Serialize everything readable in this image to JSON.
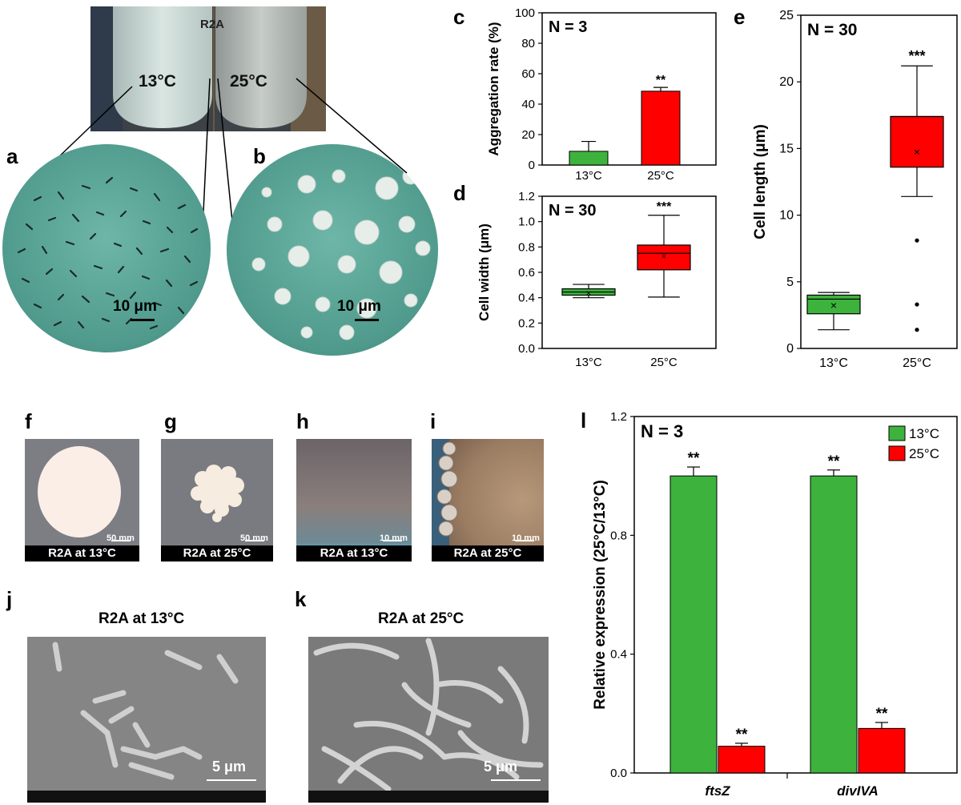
{
  "panel_labels": {
    "a": "a",
    "b": "b",
    "c": "c",
    "d": "d",
    "e": "e",
    "f": "f",
    "g": "g",
    "h": "h",
    "i": "i",
    "j": "j",
    "k": "k",
    "l": "l"
  },
  "tubes": {
    "medium": "R2A",
    "left_temp": "13°C",
    "right_temp": "25°C"
  },
  "micro": {
    "scale_a": "10 μm",
    "scale_b": "10 μm"
  },
  "plates": {
    "f": {
      "caption": "R2A at 13°C",
      "scale": "50 mm"
    },
    "g": {
      "caption": "R2A at 25°C",
      "scale": "50 mm"
    },
    "h": {
      "caption": "R2A at 13°C",
      "scale": "10 mm"
    },
    "i": {
      "caption": "R2A at 25°C",
      "scale": "10 mm"
    }
  },
  "sem": {
    "j": {
      "title": "R2A at 13°C",
      "scale": "5 μm"
    },
    "k": {
      "title": "R2A at 25°C",
      "scale": "5 μm"
    }
  },
  "colors": {
    "green": "#3db33d",
    "red": "#ff0000",
    "background": "#ffffff",
    "plate_bg": "#7a7a80"
  },
  "chart_data": [
    {
      "id": "c",
      "type": "bar",
      "annotation": "N = 3",
      "ylabel": "Aggregation rate (%)",
      "categories": [
        "13°C",
        "25°C"
      ],
      "values": [
        9,
        48.5
      ],
      "errors": [
        6.5,
        2.5
      ],
      "significance": [
        "",
        "**"
      ],
      "ylim": [
        0,
        100
      ],
      "yticks": [
        0,
        20,
        40,
        60,
        80,
        100
      ],
      "colors": [
        "#3db33d",
        "#ff0000"
      ]
    },
    {
      "id": "d",
      "type": "box",
      "annotation": "N = 30",
      "ylabel": "Cell width (μm)",
      "categories": [
        "13°C",
        "25°C"
      ],
      "boxes": [
        {
          "min": 0.4,
          "q1": 0.42,
          "median": 0.445,
          "q3": 0.47,
          "max": 0.505,
          "mean": 0.44,
          "outliers": []
        },
        {
          "min": 0.405,
          "q1": 0.62,
          "median": 0.75,
          "q3": 0.815,
          "max": 1.05,
          "mean": 0.73,
          "outliers": []
        }
      ],
      "significance": [
        "",
        "***"
      ],
      "ylim": [
        0,
        1.2
      ],
      "yticks": [
        0.0,
        0.2,
        0.4,
        0.6,
        0.8,
        1.0,
        1.2
      ],
      "colors": [
        "#3db33d",
        "#ff0000"
      ]
    },
    {
      "id": "e",
      "type": "box",
      "annotation": "N = 30",
      "ylabel": "Cell length (μm)",
      "categories": [
        "13°C",
        "25°C"
      ],
      "boxes": [
        {
          "min": 1.4,
          "q1": 2.6,
          "median": 3.7,
          "q3": 4.0,
          "max": 4.2,
          "mean": 3.2,
          "outliers": []
        },
        {
          "min": 11.4,
          "q1": 13.6,
          "median": 17.4,
          "q3": 17.4,
          "max": 21.2,
          "mean": 14.7,
          "outliers": [
            8.1,
            3.3,
            1.4
          ]
        }
      ],
      "significance": [
        "",
        "***"
      ],
      "ylim": [
        0,
        25
      ],
      "yticks": [
        0,
        5,
        10,
        15,
        20,
        25
      ],
      "colors": [
        "#3db33d",
        "#ff0000"
      ]
    },
    {
      "id": "l",
      "type": "bar",
      "annotation": "N = 3",
      "ylabel": "Relative expression (25°C/13°C)",
      "categories": [
        "ftsZ",
        "divIVA"
      ],
      "series": [
        {
          "name": "13°C",
          "values": [
            1.0,
            1.0
          ],
          "errors": [
            0.03,
            0.02
          ],
          "significance": [
            "**",
            "**"
          ]
        },
        {
          "name": "25°C",
          "values": [
            0.09,
            0.15
          ],
          "errors": [
            0.01,
            0.02
          ],
          "significance": [
            "**",
            "**"
          ]
        }
      ],
      "ylim": [
        0,
        1.2
      ],
      "yticks": [
        "0.0",
        "0.4",
        "0.8",
        "1.2"
      ],
      "legend": "top-right",
      "colors": [
        "#3db33d",
        "#ff0000"
      ]
    }
  ]
}
